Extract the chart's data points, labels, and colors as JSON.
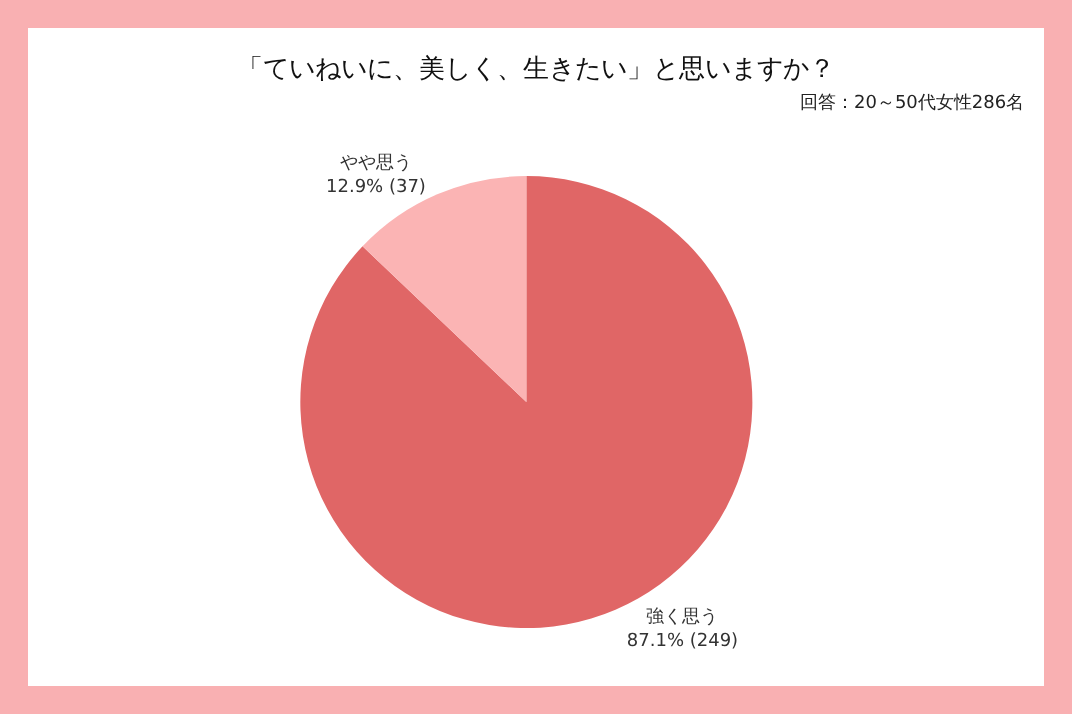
{
  "chart_data": {
    "type": "pie",
    "title": "「ていねいに、美しく、生きたい」と思いますか？",
    "subtitle": "回答：20～50代女性286名",
    "categories": [
      "強く思う",
      "やや思う"
    ],
    "values": [
      87.1,
      12.9
    ],
    "value_labels": [
      "87.1% (249)",
      "12.9% (37)"
    ],
    "colors": [
      "#e06666",
      "#fbb4b4"
    ],
    "legend": false
  }
}
